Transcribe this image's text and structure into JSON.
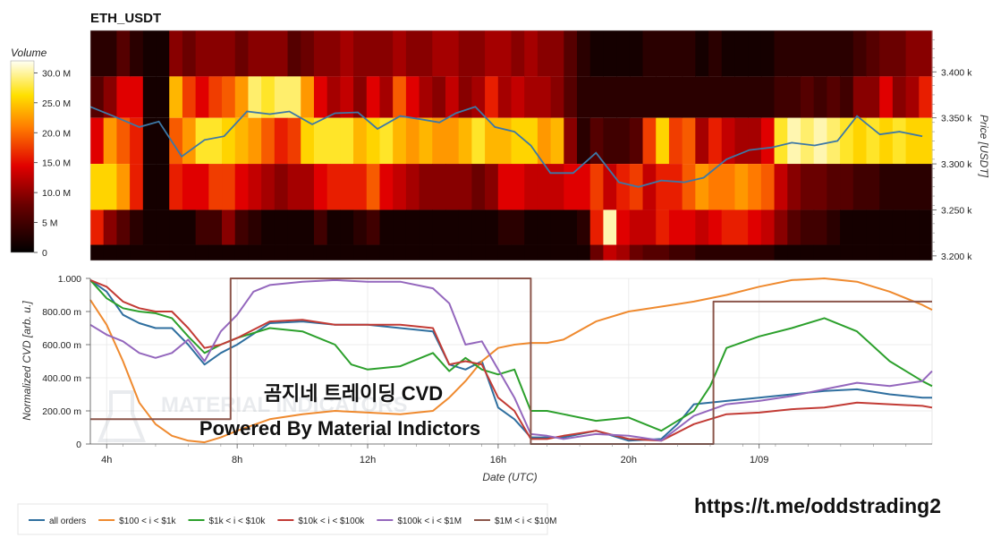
{
  "title": "ETH_USDT",
  "colorbar": {
    "title": "Volume",
    "ticks": [
      "30.0 M",
      "25.0 M",
      "20.0 M",
      "15.0 M",
      "10.0 M",
      "5 M",
      "0"
    ],
    "tick_values": [
      30,
      25,
      20,
      15,
      10,
      5,
      0
    ]
  },
  "watermark": {
    "title": "곰지네 트레이딩 CVD",
    "subtitle": "Powered By Material Indictors",
    "logo_text": "MATERIAL INDICATORS"
  },
  "footer_url": "https://t.me/oddstrading2",
  "chart_data": [
    {
      "type": "heatmap",
      "title": "ETH_USDT",
      "ylabel": "Price [USDT]",
      "ylim": [
        3195,
        3445
      ],
      "yticks": [
        {
          "v": 3400,
          "label": "3.400 k"
        },
        {
          "v": 3350,
          "label": "3.350 k"
        },
        {
          "v": 3300,
          "label": "3.300 k"
        },
        {
          "v": 3250,
          "label": "3.250 k"
        },
        {
          "v": 3200,
          "label": "3.200 k"
        }
      ],
      "xlim": [
        3.5,
        29.3
      ],
      "price_bands": [
        3420,
        3375,
        3325,
        3275,
        3225,
        3205
      ],
      "price_line": {
        "x": [
          3.5,
          4.2,
          5,
          5.6,
          6.3,
          7,
          7.6,
          8.3,
          9,
          9.6,
          10.3,
          11,
          11.7,
          12.3,
          13,
          13.7,
          14.2,
          14.7,
          15.3,
          15.9,
          16.5,
          17,
          17.6,
          18.3,
          19,
          19.7,
          20.3,
          21,
          21.7,
          22.3,
          23,
          23.7,
          24.4,
          25,
          25.7,
          26.4,
          27,
          27.7,
          28.3,
          29
        ],
        "y": [
          3362,
          3352,
          3340,
          3346,
          3308,
          3326,
          3330,
          3357,
          3354,
          3357,
          3343,
          3355,
          3356,
          3338,
          3352,
          3348,
          3345,
          3355,
          3362,
          3340,
          3335,
          3320,
          3290,
          3290,
          3312,
          3280,
          3275,
          3282,
          3280,
          3285,
          3305,
          3315,
          3318,
          3323,
          3320,
          3325,
          3352,
          3332,
          3335,
          3330
        ]
      },
      "columns": [
        [
          0.1,
          0.2,
          0.45,
          0.8,
          0.5,
          0.05
        ],
        [
          0.1,
          0.3,
          0.7,
          0.8,
          0.3,
          0.05
        ],
        [
          0.2,
          0.45,
          0.6,
          0.7,
          0.2,
          0.05
        ],
        [
          0.1,
          0.45,
          0.5,
          0.5,
          0.1,
          0.05
        ],
        [
          0.05,
          0.05,
          0.05,
          0.05,
          0.05,
          0.05
        ],
        [
          0.05,
          0.05,
          0.05,
          0.05,
          0.05,
          0.05
        ],
        [
          0.3,
          0.75,
          0.6,
          0.5,
          0.05,
          0.05
        ],
        [
          0.25,
          0.55,
          0.7,
          0.45,
          0.05,
          0.05
        ],
        [
          0.3,
          0.45,
          0.85,
          0.45,
          0.15,
          0.05
        ],
        [
          0.3,
          0.55,
          0.85,
          0.55,
          0.15,
          0.05
        ],
        [
          0.3,
          0.6,
          0.8,
          0.55,
          0.3,
          0.05
        ],
        [
          0.25,
          0.7,
          0.75,
          0.45,
          0.15,
          0.05
        ],
        [
          0.3,
          0.9,
          0.7,
          0.4,
          0.1,
          0.05
        ],
        [
          0.3,
          0.85,
          0.6,
          0.35,
          0.05,
          0.05
        ],
        [
          0.3,
          0.9,
          0.5,
          0.3,
          0.05,
          0.05
        ],
        [
          0.2,
          0.9,
          0.55,
          0.35,
          0.05,
          0.05
        ],
        [
          0.25,
          0.7,
          0.8,
          0.35,
          0.05,
          0.05
        ],
        [
          0.3,
          0.45,
          0.85,
          0.45,
          0.15,
          0.05
        ],
        [
          0.3,
          0.35,
          0.85,
          0.5,
          0.05,
          0.05
        ],
        [
          0.35,
          0.4,
          0.85,
          0.5,
          0.05,
          0.05
        ],
        [
          0.3,
          0.3,
          0.75,
          0.5,
          0.1,
          0.05
        ],
        [
          0.3,
          0.45,
          0.8,
          0.6,
          0.15,
          0.05
        ],
        [
          0.3,
          0.35,
          0.85,
          0.45,
          0.05,
          0.05
        ],
        [
          0.35,
          0.6,
          0.75,
          0.4,
          0.05,
          0.05
        ],
        [
          0.3,
          0.45,
          0.7,
          0.35,
          0.05,
          0.05
        ],
        [
          0.3,
          0.35,
          0.75,
          0.3,
          0.05,
          0.05
        ],
        [
          0.35,
          0.3,
          0.7,
          0.3,
          0.05,
          0.05
        ],
        [
          0.35,
          0.4,
          0.7,
          0.3,
          0.05,
          0.05
        ],
        [
          0.3,
          0.3,
          0.75,
          0.3,
          0.05,
          0.05
        ],
        [
          0.3,
          0.35,
          0.85,
          0.25,
          0.05,
          0.05
        ],
        [
          0.35,
          0.5,
          0.75,
          0.3,
          0.05,
          0.05
        ],
        [
          0.35,
          0.35,
          0.75,
          0.45,
          0.1,
          0.05
        ],
        [
          0.3,
          0.4,
          0.8,
          0.45,
          0.1,
          0.05
        ],
        [
          0.35,
          0.35,
          0.8,
          0.4,
          0.05,
          0.05
        ],
        [
          0.3,
          0.35,
          0.7,
          0.4,
          0.05,
          0.05
        ],
        [
          0.3,
          0.3,
          0.75,
          0.4,
          0.05,
          0.05
        ],
        [
          0.2,
          0.2,
          0.3,
          0.45,
          0.05,
          0.05
        ],
        [
          0.1,
          0.1,
          0.1,
          0.45,
          0.1,
          0.05
        ],
        [
          0.05,
          0.1,
          0.2,
          0.55,
          0.5,
          0.25
        ],
        [
          0.05,
          0.1,
          0.15,
          0.4,
          0.95,
          0.4
        ],
        [
          0.05,
          0.1,
          0.15,
          0.5,
          0.45,
          0.35
        ],
        [
          0.05,
          0.1,
          0.2,
          0.55,
          0.4,
          0.25
        ],
        [
          0.1,
          0.1,
          0.55,
          0.4,
          0.4,
          0.2
        ],
        [
          0.1,
          0.1,
          0.8,
          0.5,
          0.5,
          0.2
        ],
        [
          0.1,
          0.1,
          0.55,
          0.5,
          0.45,
          0.15
        ],
        [
          0.1,
          0.1,
          0.6,
          0.6,
          0.45,
          0.15
        ],
        [
          0.05,
          0.1,
          0.35,
          0.7,
          0.4,
          0.1
        ],
        [
          0.1,
          0.1,
          0.5,
          0.65,
          0.45,
          0.1
        ],
        [
          0.05,
          0.1,
          0.4,
          0.65,
          0.5,
          0.1
        ],
        [
          0.05,
          0.1,
          0.35,
          0.7,
          0.5,
          0.1
        ],
        [
          0.05,
          0.1,
          0.35,
          0.65,
          0.45,
          0.1
        ],
        [
          0.05,
          0.1,
          0.45,
          0.6,
          0.4,
          0.1
        ],
        [
          0.1,
          0.15,
          0.85,
          0.4,
          0.3,
          0.05
        ],
        [
          0.1,
          0.15,
          0.95,
          0.3,
          0.2,
          0.05
        ],
        [
          0.1,
          0.2,
          0.9,
          0.25,
          0.15,
          0.05
        ],
        [
          0.1,
          0.15,
          0.95,
          0.25,
          0.15,
          0.05
        ],
        [
          0.1,
          0.2,
          0.9,
          0.2,
          0.1,
          0.05
        ],
        [
          0.1,
          0.15,
          0.85,
          0.2,
          0.05,
          0.05
        ],
        [
          0.15,
          0.3,
          0.8,
          0.15,
          0.05,
          0.05
        ],
        [
          0.2,
          0.3,
          0.85,
          0.15,
          0.05,
          0.05
        ],
        [
          0.25,
          0.45,
          0.8,
          0.1,
          0.05,
          0.05
        ],
        [
          0.25,
          0.3,
          0.85,
          0.1,
          0.05,
          0.05
        ],
        [
          0.3,
          0.35,
          0.8,
          0.1,
          0.05,
          0.05
        ],
        [
          0.3,
          0.5,
          0.8,
          0.1,
          0.05,
          0.05
        ]
      ]
    },
    {
      "type": "line",
      "xlabel": "Date (UTC)",
      "ylabel": "Normalized CVD [arb. u.]",
      "ylim": [
        0,
        1
      ],
      "yticks": [
        {
          "v": 1.0,
          "label": "1.000"
        },
        {
          "v": 0.8,
          "label": "800.00 m"
        },
        {
          "v": 0.6,
          "label": "600.00 m"
        },
        {
          "v": 0.4,
          "label": "400.00 m"
        },
        {
          "v": 0.2,
          "label": "200.00 m"
        },
        {
          "v": 0,
          "label": "0"
        }
      ],
      "xlim": [
        3.5,
        29.3
      ],
      "xticks": [
        {
          "v": 4,
          "label": "4h"
        },
        {
          "v": 8,
          "label": "8h"
        },
        {
          "v": 12,
          "label": "12h"
        },
        {
          "v": 16,
          "label": "16h"
        },
        {
          "v": 20,
          "label": "20h"
        },
        {
          "v": 24,
          "label": "1/09"
        }
      ],
      "legend_position": "bottom",
      "series": [
        {
          "name": "all orders",
          "color": "#2f6f9f",
          "x": [
            3.5,
            4,
            4.5,
            5,
            5.5,
            6,
            6.5,
            7,
            7.5,
            8,
            9,
            10,
            11,
            12,
            13,
            14,
            14.5,
            15,
            15.5,
            16,
            16.5,
            17,
            17.5,
            18,
            19,
            20,
            21,
            21.5,
            22,
            23,
            24,
            25,
            26,
            27,
            28,
            29,
            29.3
          ],
          "y": [
            0.99,
            0.92,
            0.78,
            0.73,
            0.7,
            0.7,
            0.6,
            0.48,
            0.55,
            0.6,
            0.73,
            0.74,
            0.72,
            0.72,
            0.7,
            0.68,
            0.48,
            0.45,
            0.5,
            0.22,
            0.15,
            0.04,
            0.04,
            0.04,
            0.08,
            0.02,
            0.03,
            0.12,
            0.24,
            0.26,
            0.28,
            0.3,
            0.32,
            0.33,
            0.3,
            0.28,
            0.28
          ]
        },
        {
          "name": "$100 < i < $1k",
          "color": "#ef8a2f",
          "x": [
            3.5,
            4,
            4.5,
            5,
            5.5,
            6,
            6.5,
            7,
            7.5,
            8,
            9,
            10,
            11,
            12,
            13,
            14,
            14.5,
            15,
            15.5,
            16,
            16.5,
            17,
            17.5,
            18,
            19,
            20,
            21,
            22,
            23,
            24,
            25,
            26,
            27,
            28,
            29,
            29.3
          ],
          "y": [
            0.87,
            0.72,
            0.5,
            0.25,
            0.12,
            0.05,
            0.02,
            0.01,
            0.04,
            0.08,
            0.15,
            0.18,
            0.2,
            0.19,
            0.18,
            0.2,
            0.28,
            0.38,
            0.5,
            0.58,
            0.6,
            0.61,
            0.61,
            0.63,
            0.74,
            0.8,
            0.83,
            0.86,
            0.9,
            0.95,
            0.99,
            1.0,
            0.98,
            0.92,
            0.84,
            0.81
          ]
        },
        {
          "name": "$1k < i < $10k",
          "color": "#2ca02c",
          "x": [
            3.5,
            4,
            4.5,
            5,
            5.5,
            6,
            6.5,
            7,
            7.5,
            8,
            9,
            10,
            11,
            11.5,
            12,
            13,
            14,
            14.5,
            15,
            15.5,
            16,
            16.5,
            17,
            17.5,
            18,
            19,
            20,
            21,
            22,
            22.5,
            23,
            24,
            25,
            26,
            27,
            28,
            29,
            29.3
          ],
          "y": [
            0.99,
            0.88,
            0.82,
            0.8,
            0.79,
            0.76,
            0.65,
            0.55,
            0.6,
            0.64,
            0.7,
            0.68,
            0.6,
            0.48,
            0.45,
            0.47,
            0.55,
            0.44,
            0.52,
            0.45,
            0.42,
            0.45,
            0.2,
            0.2,
            0.18,
            0.14,
            0.16,
            0.08,
            0.2,
            0.35,
            0.58,
            0.65,
            0.7,
            0.76,
            0.68,
            0.5,
            0.38,
            0.35
          ]
        },
        {
          "name": "$10k < i < $100k",
          "color": "#c23b35",
          "x": [
            3.5,
            4,
            4.5,
            5,
            5.5,
            6,
            6.5,
            7,
            7.5,
            8,
            9,
            10,
            11,
            12,
            13,
            14,
            14.5,
            15,
            15.5,
            16,
            16.5,
            17,
            17.5,
            18,
            19,
            20,
            21,
            22,
            23,
            24,
            25,
            26,
            27,
            28,
            29,
            29.3
          ],
          "y": [
            0.99,
            0.95,
            0.86,
            0.82,
            0.8,
            0.8,
            0.7,
            0.58,
            0.6,
            0.64,
            0.74,
            0.75,
            0.72,
            0.72,
            0.72,
            0.7,
            0.48,
            0.5,
            0.48,
            0.28,
            0.2,
            0.03,
            0.03,
            0.05,
            0.08,
            0.03,
            0.02,
            0.12,
            0.18,
            0.19,
            0.21,
            0.22,
            0.25,
            0.24,
            0.23,
            0.22
          ]
        },
        {
          "name": "$100k < i < $1M",
          "color": "#9467bd",
          "x": [
            3.5,
            4,
            4.5,
            5,
            5.5,
            6,
            6.5,
            7,
            7.5,
            8,
            8.5,
            9,
            10,
            11,
            12,
            13,
            14,
            14.5,
            15,
            15.5,
            16,
            16.5,
            17,
            17.5,
            18,
            19,
            20,
            21,
            22,
            23,
            24,
            25,
            26,
            27,
            28,
            29,
            29.3
          ],
          "y": [
            0.72,
            0.66,
            0.62,
            0.55,
            0.52,
            0.55,
            0.63,
            0.5,
            0.68,
            0.78,
            0.92,
            0.96,
            0.98,
            0.99,
            0.98,
            0.98,
            0.94,
            0.85,
            0.6,
            0.62,
            0.45,
            0.28,
            0.06,
            0.05,
            0.03,
            0.06,
            0.05,
            0.02,
            0.17,
            0.24,
            0.26,
            0.29,
            0.33,
            0.37,
            0.35,
            0.38,
            0.44
          ]
        },
        {
          "name": "$1M < i < $10M",
          "color": "#8c564b",
          "x": [
            3.5,
            7.8,
            7.8,
            17,
            17,
            22.6,
            22.6,
            29.3
          ],
          "y": [
            0.15,
            0.15,
            1.0,
            1.0,
            0.0,
            0.0,
            0.86,
            0.86
          ]
        }
      ]
    }
  ]
}
